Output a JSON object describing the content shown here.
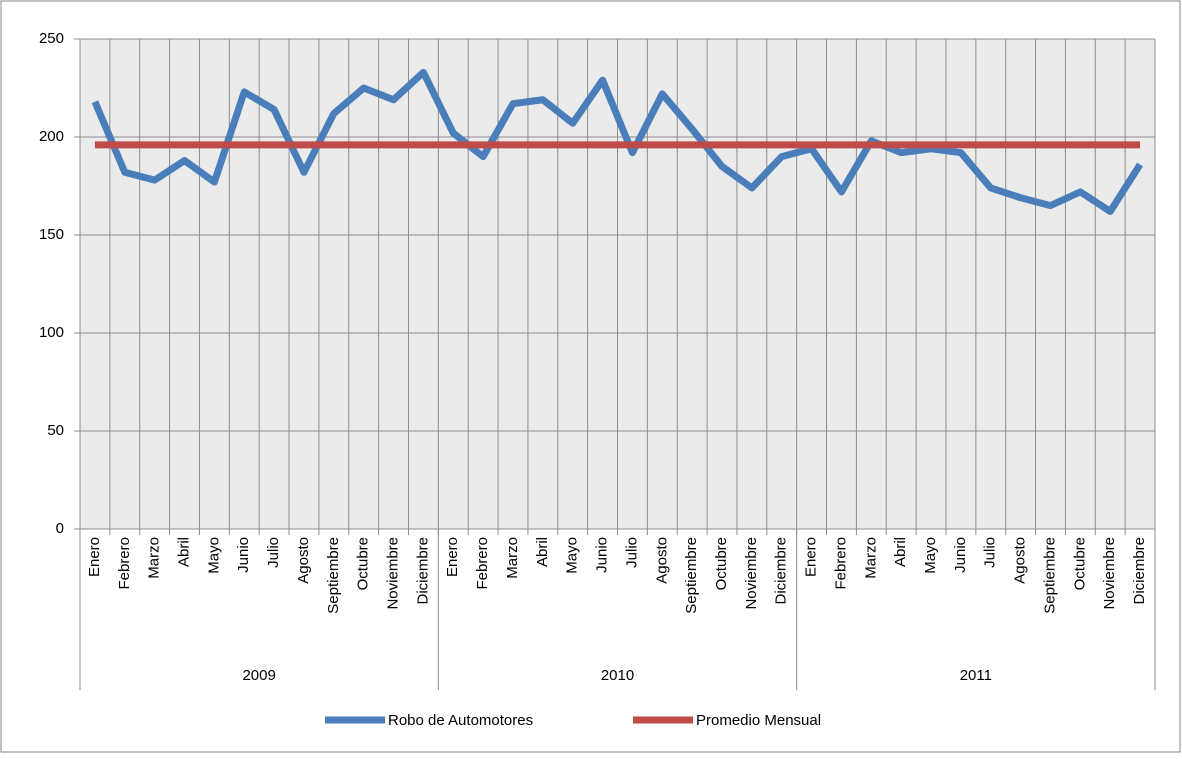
{
  "chart_data": {
    "type": "line",
    "categories": [
      "Enero",
      "Febrero",
      "Marzo",
      "Abril",
      "Mayo",
      "Junio",
      "Julio",
      "Agosto",
      "Septiembre",
      "Octubre",
      "Noviembre",
      "Diciembre",
      "Enero",
      "Febrero",
      "Marzo",
      "Abril",
      "Mayo",
      "Junio",
      "Julio",
      "Agosto",
      "Septiembre",
      "Octubre",
      "Noviembre",
      "Diciembre",
      "Enero",
      "Febrero",
      "Marzo",
      "Abril",
      "Mayo",
      "Junio",
      "Julio",
      "Agosto",
      "Septiembre",
      "Octubre",
      "Noviembre",
      "Diciembre"
    ],
    "groups": [
      "2009",
      "2010",
      "2011"
    ],
    "series": [
      {
        "name": "Robo de Automotores",
        "color": "#4a7ebb",
        "values": [
          218,
          182,
          178,
          188,
          177,
          223,
          214,
          182,
          212,
          225,
          219,
          233,
          202,
          190,
          217,
          219,
          207,
          229,
          192,
          222,
          204,
          185,
          174,
          190,
          194,
          172,
          198,
          192,
          194,
          192,
          174,
          169,
          165,
          172,
          162,
          186
        ]
      },
      {
        "name": "Promedio Mensual",
        "color": "#be4b48",
        "values": [
          196,
          196,
          196,
          196,
          196,
          196,
          196,
          196,
          196,
          196,
          196,
          196,
          196,
          196,
          196,
          196,
          196,
          196,
          196,
          196,
          196,
          196,
          196,
          196,
          196,
          196,
          196,
          196,
          196,
          196,
          196,
          196,
          196,
          196,
          196,
          196
        ]
      }
    ],
    "ylim": [
      0,
      250
    ],
    "yticks": [
      0,
      50,
      100,
      150,
      200,
      250
    ],
    "grid": true,
    "legend": "bottom"
  }
}
